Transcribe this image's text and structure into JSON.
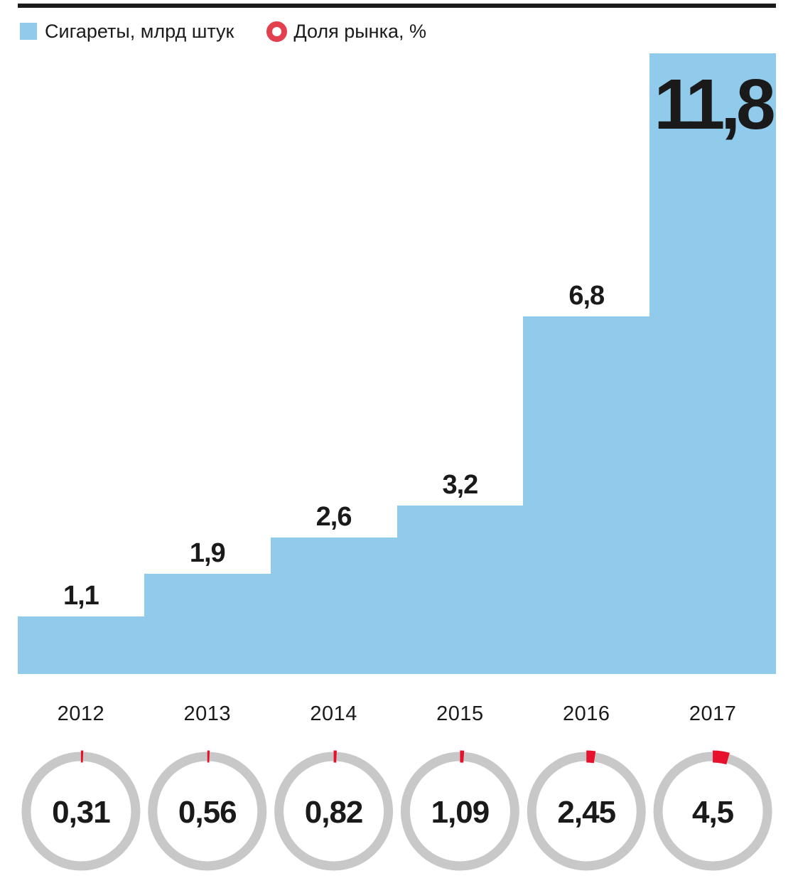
{
  "legend": {
    "bars_label": "Сигареты, млрд штук",
    "share_label": "Доля рынка, %"
  },
  "colors": {
    "bar_blue": "#90cbeb",
    "ring_gray": "#c8c8c8",
    "arc_red": "#e8112d",
    "legend_ring_red": "#e2404f",
    "text_black": "#1a1a1a",
    "rule_black": "#1a1a1a"
  },
  "chart_data": {
    "type": "bar",
    "categories": [
      "2012",
      "2013",
      "2014",
      "2015",
      "2016",
      "2017"
    ],
    "series": [
      {
        "name": "Сигареты, млрд штук",
        "values": [
          1.1,
          1.9,
          2.6,
          3.2,
          6.8,
          11.8
        ],
        "labels": [
          "1,1",
          "1,9",
          "2,6",
          "3,2",
          "6,8",
          "11,8"
        ]
      },
      {
        "name": "Доля рынка, %",
        "values": [
          0.31,
          0.56,
          0.82,
          1.09,
          2.45,
          4.5
        ],
        "labels": [
          "0,31",
          "0,56",
          "0,82",
          "1,09",
          "2,45",
          "4,5"
        ]
      }
    ],
    "ylim": [
      0,
      11.8
    ],
    "grid": false,
    "legend_position": "top",
    "xlabel": "",
    "ylabel": "",
    "title": ""
  }
}
